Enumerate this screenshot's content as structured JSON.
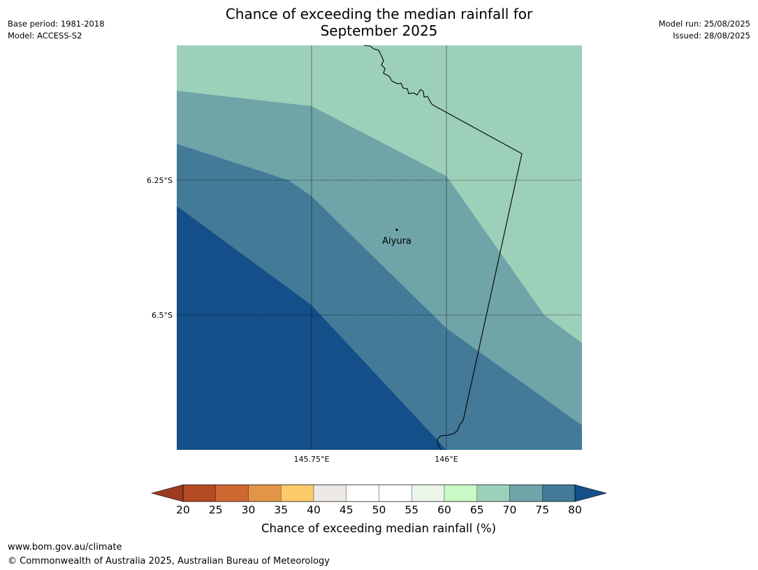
{
  "header": {
    "title_line1": "Chance of exceeding the median rainfall for",
    "title_line2": "September 2025",
    "left_line1": "Base period: 1981-2018",
    "left_line2": "Model: ACCESS-S2",
    "right_line1": "Model run: 25/08/2025",
    "right_line2": "Issued: 28/08/2025"
  },
  "map": {
    "lon_ticks": [
      "145.75°E",
      "146°E"
    ],
    "lat_ticks": [
      "6.25°S",
      "6.5°S"
    ],
    "place_label": "Aiyura",
    "zone_colors": {
      "65-70": "#9dd0b9",
      "70-75": "#6fa4a8",
      "75-80": "#427a98",
      "80+": "#144f89"
    }
  },
  "colorbar": {
    "caption": "Chance of exceeding median rainfall (%)",
    "tick_labels": [
      "20",
      "25",
      "30",
      "35",
      "40",
      "45",
      "50",
      "55",
      "60",
      "65",
      "70",
      "75",
      "80"
    ],
    "below_color": "#9c3b22",
    "above_color": "#144f89",
    "segment_colors": [
      "#b34a24",
      "#cf6832",
      "#e39547",
      "#fdcc6a",
      "#ece8e4",
      "#ffffff",
      "#ffffff",
      "#eaf6ea",
      "#caf9c8",
      "#9dd0b9",
      "#6fa4a8",
      "#427a98"
    ]
  },
  "footer": {
    "url": "www.bom.gov.au/climate",
    "copyright": "© Commonwealth of Australia 2025, Australian Bureau of Meteorology"
  }
}
